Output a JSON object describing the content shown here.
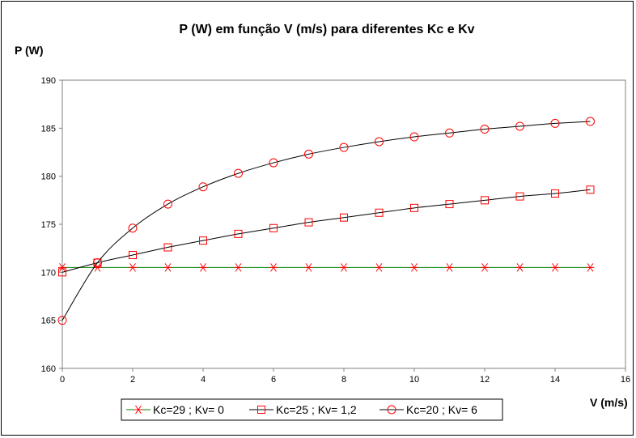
{
  "chart_data": {
    "type": "line",
    "title": "P (W) em função V (m/s) para diferentes Kc e Kv",
    "xlabel": "V (m/s)",
    "ylabel": "P (W)",
    "xlim": [
      0,
      16
    ],
    "ylim": [
      160,
      190
    ],
    "xticks": [
      0,
      2,
      4,
      6,
      8,
      10,
      12,
      14,
      16
    ],
    "yticks": [
      160,
      165,
      170,
      175,
      180,
      185,
      190
    ],
    "grid": false,
    "legend_position": "bottom",
    "x": [
      0,
      1,
      2,
      3,
      4,
      5,
      6,
      7,
      8,
      9,
      10,
      11,
      12,
      13,
      14,
      15
    ],
    "series": [
      {
        "name": "Kc=29 ; Kv= 0",
        "marker": "star",
        "line_color": "#008000",
        "marker_color": "#ff0000",
        "values": [
          170.5,
          170.5,
          170.5,
          170.5,
          170.5,
          170.5,
          170.5,
          170.5,
          170.5,
          170.5,
          170.5,
          170.5,
          170.5,
          170.5,
          170.5,
          170.5
        ]
      },
      {
        "name": "Kc=25 ; Kv= 1,2",
        "marker": "square",
        "line_color": "#000000",
        "marker_color": "#ff0000",
        "values": [
          170.0,
          171.0,
          171.8,
          172.6,
          173.3,
          174.0,
          174.6,
          175.2,
          175.7,
          176.2,
          176.7,
          177.1,
          177.5,
          177.9,
          178.2,
          178.6
        ]
      },
      {
        "name": "Kc=20 ; Kv= 6",
        "marker": "circle",
        "line_color": "#000000",
        "marker_color": "#ff0000",
        "values": [
          165.0,
          171.0,
          174.6,
          177.1,
          178.9,
          180.3,
          181.4,
          182.3,
          183.0,
          183.6,
          184.1,
          184.5,
          184.9,
          185.2,
          185.5,
          185.7
        ]
      }
    ]
  }
}
